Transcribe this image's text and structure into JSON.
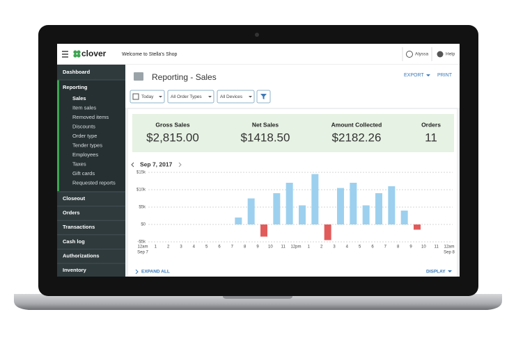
{
  "topbar": {
    "brand": "clover",
    "welcome": "Welcome to Stella's Shop",
    "user": "Alyssa",
    "help": "Help"
  },
  "sidebar": {
    "top": [
      "Dashboard",
      "Reporting"
    ],
    "subitems": [
      "Sales",
      "Item sales",
      "Removed items",
      "Discounts",
      "Order type",
      "Tender types",
      "Employees",
      "Taxes",
      "Gift cards",
      "Requested reports"
    ],
    "bottom": [
      "Closeout",
      "Orders",
      "Transactions",
      "Cash log",
      "Authorizations",
      "Inventory"
    ]
  },
  "header": {
    "title": "Reporting - Sales",
    "export": "EXPORT",
    "print": "PRINT"
  },
  "filters": [
    "Today",
    "All Order Types",
    "All Devices"
  ],
  "summary": [
    {
      "label": "Gross Sales",
      "value": "$2,815.00"
    },
    {
      "label": "Net Sales",
      "value": "$1418.50"
    },
    {
      "label": "Amount Collected",
      "value": "$2182.26"
    },
    {
      "label": "Orders",
      "value": "11"
    }
  ],
  "date": "Sep 7, 2017",
  "chart_data": {
    "type": "bar",
    "categories": [
      "12am",
      "1",
      "2",
      "3",
      "4",
      "5",
      "6",
      "7",
      "8",
      "9",
      "10",
      "11",
      "12pm",
      "1",
      "2",
      "3",
      "4",
      "5",
      "6",
      "7",
      "8",
      "9",
      "10",
      "11",
      "12am"
    ],
    "category_dates": [
      "Sep 7",
      null,
      null,
      null,
      null,
      null,
      null,
      null,
      null,
      null,
      null,
      null,
      null,
      null,
      null,
      null,
      null,
      null,
      null,
      null,
      null,
      null,
      null,
      null,
      "Sep 8"
    ],
    "values": [
      null,
      null,
      null,
      null,
      null,
      null,
      null,
      2,
      7.5,
      -3.5,
      9,
      12,
      5.5,
      14.5,
      -4.5,
      10.5,
      12,
      5.5,
      9,
      11,
      4,
      -1.5,
      null,
      null,
      null
    ],
    "color": "#9dd0ee",
    "negative_color": "#e25b5b",
    "ylim": [
      -5,
      15
    ],
    "yticks": [
      {
        "value": -5,
        "label": "-$5k"
      },
      {
        "value": 0,
        "label": "$0"
      },
      {
        "value": 5,
        "label": "$5k"
      },
      {
        "value": 10,
        "label": "$10k"
      },
      {
        "value": 15,
        "label": "$15k"
      }
    ],
    "grid": true
  },
  "footer": {
    "expand": "EXPAND ALL",
    "display": "DISPLAY"
  }
}
